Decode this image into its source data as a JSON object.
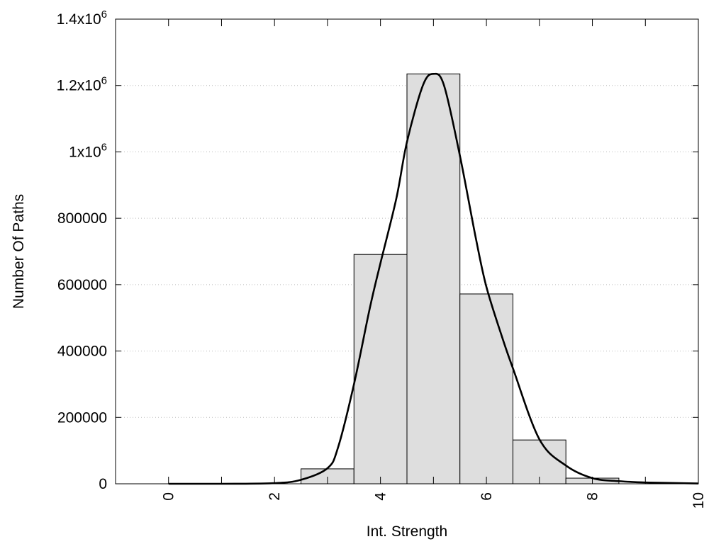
{
  "chart_data": {
    "type": "bar",
    "title": "",
    "xlabel": "Int. Strength",
    "ylabel": "Number Of Paths",
    "xlim": [
      -1,
      10
    ],
    "ylim": [
      0,
      1400000
    ],
    "grid": "horizontal dotted",
    "x_ticks": [
      0,
      2,
      4,
      6,
      8,
      10
    ],
    "x_tick_labels": [
      "0",
      "2",
      "4",
      "6",
      "8",
      "10"
    ],
    "x_minor_ticks": [
      1,
      3,
      5,
      7,
      9
    ],
    "y_ticks": [
      0,
      200000,
      400000,
      600000,
      800000,
      1000000,
      1200000,
      1400000
    ],
    "y_tick_labels": [
      {
        "base": "0",
        "exp": ""
      },
      {
        "base": "200000",
        "exp": ""
      },
      {
        "base": "400000",
        "exp": ""
      },
      {
        "base": "600000",
        "exp": ""
      },
      {
        "base": "800000",
        "exp": ""
      },
      {
        "base": "1x10",
        "exp": "6"
      },
      {
        "base": "1.2x10",
        "exp": "6"
      },
      {
        "base": "1.4x10",
        "exp": "6"
      }
    ],
    "bars": {
      "name": "histogram",
      "color": "#dedede",
      "width": 1,
      "x": [
        3,
        4,
        5,
        6,
        7,
        8
      ],
      "values": [
        45000,
        691000,
        1235000,
        572000,
        132000,
        17000
      ]
    },
    "curve": {
      "name": "fit",
      "color": "#000000",
      "x": [
        0,
        1,
        2,
        2.5,
        3,
        3.2,
        3.5,
        3.8,
        4,
        4.3,
        4.5,
        4.8,
        5,
        5.2,
        5.5,
        5.8,
        6,
        6.3,
        6.5,
        7,
        7.5,
        8,
        8.5,
        9,
        10
      ],
      "y": [
        0,
        0,
        2000,
        12000,
        47000,
        110000,
        300000,
        530000,
        665000,
        860000,
        1030000,
        1200000,
        1235000,
        1200000,
        988000,
        740000,
        593000,
        440000,
        348000,
        134000,
        55000,
        17000,
        8000,
        4000,
        1000
      ]
    }
  }
}
